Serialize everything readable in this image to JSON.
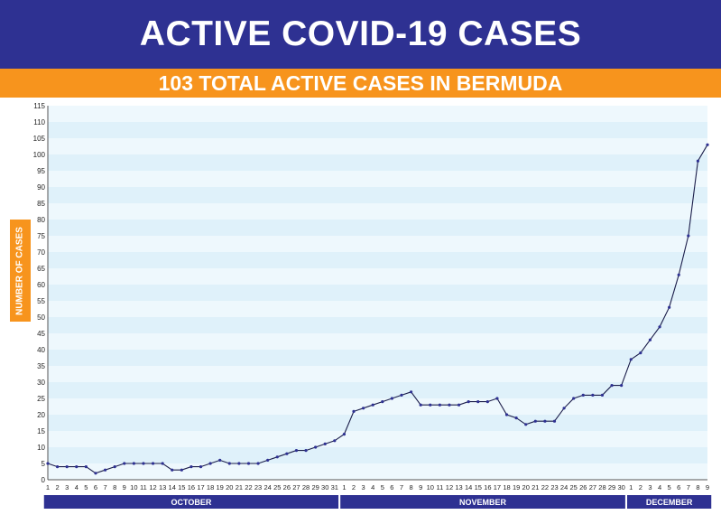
{
  "header": {
    "title": "ACTIVE COVID-19 CASES"
  },
  "subheader": {
    "text": "103 TOTAL ACTIVE CASES IN BERMUDA"
  },
  "colors": {
    "header_bg": "#2e3192",
    "accent_orange": "#f7941d",
    "line": "#1b1d4a",
    "band_light": "#eef8fd",
    "band_dark": "#dff1fa",
    "month_bar": "#2e3192"
  },
  "chart_data": {
    "type": "line",
    "title": "ACTIVE COVID-19 CASES",
    "subtitle": "103 TOTAL ACTIVE CASES IN BERMUDA",
    "ylabel": "NUMBER OF CASES",
    "xlabel": "",
    "ylim": [
      0,
      115
    ],
    "ytick_step": 5,
    "grid": "horizontal bands",
    "x": [
      "1",
      "2",
      "3",
      "4",
      "5",
      "6",
      "7",
      "8",
      "9",
      "10",
      "11",
      "12",
      "13",
      "14",
      "15",
      "16",
      "17",
      "18",
      "19",
      "20",
      "21",
      "22",
      "23",
      "24",
      "25",
      "26",
      "27",
      "28",
      "29",
      "30",
      "31",
      "1",
      "2",
      "3",
      "4",
      "5",
      "6",
      "7",
      "8",
      "9",
      "10",
      "11",
      "12",
      "13",
      "14",
      "15",
      "16",
      "17",
      "18",
      "19",
      "20",
      "21",
      "22",
      "23",
      "24",
      "25",
      "26",
      "27",
      "28",
      "29",
      "30",
      "1",
      "2",
      "3",
      "4",
      "5",
      "6",
      "7",
      "8",
      "9"
    ],
    "months": [
      {
        "name": "OCTOBER",
        "days": 31
      },
      {
        "name": "NOVEMBER",
        "days": 30
      },
      {
        "name": "DECEMBER",
        "days": 9
      }
    ],
    "series": [
      {
        "values": [
          5,
          4,
          4,
          4,
          4,
          2,
          3,
          4,
          5,
          5,
          5,
          5,
          5,
          3,
          3,
          4,
          4,
          5,
          6,
          5,
          5,
          5,
          5,
          6,
          7,
          8,
          9,
          9,
          10,
          11,
          12,
          14,
          21,
          22,
          23,
          24,
          25,
          26,
          27,
          23,
          23,
          23,
          23,
          23,
          24,
          24,
          24,
          25,
          20,
          19,
          17,
          18,
          18,
          18,
          22,
          25,
          26,
          26,
          26,
          29,
          29,
          37,
          39,
          43,
          47,
          53,
          63,
          75,
          98,
          103
        ]
      }
    ]
  }
}
